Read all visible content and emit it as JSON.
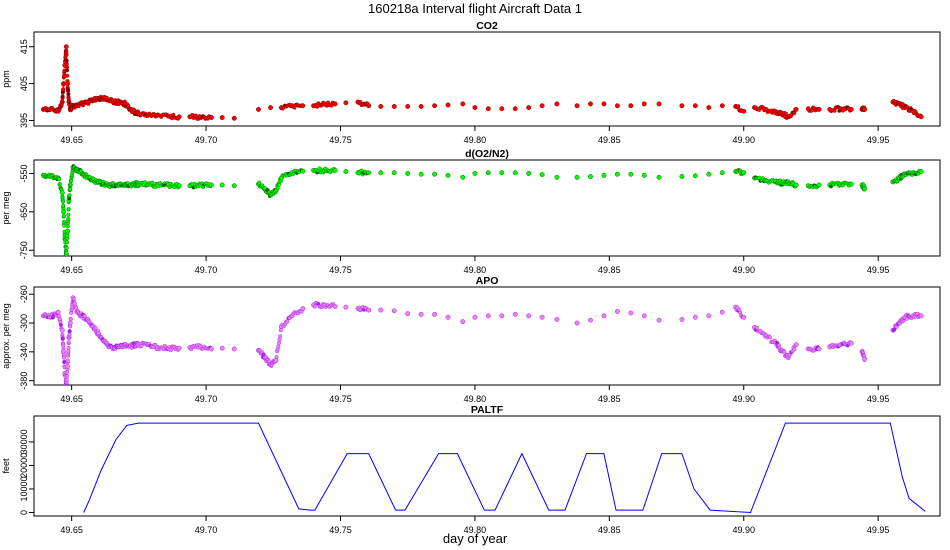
{
  "figure": {
    "title": "160218a   Interval flight Aircraft Data 1",
    "xlabel": "day of year"
  },
  "chart_data": [
    {
      "type": "scatter",
      "title": "CO2",
      "ylabel": "ppm",
      "xlim": [
        49.636,
        49.973
      ],
      "ylim": [
        393.5,
        419
      ],
      "x_ticks": [
        "49.65",
        "49.70",
        "49.75",
        "49.80",
        "49.85",
        "49.90",
        "49.95"
      ],
      "y_ticks": [
        "395",
        "405",
        "415"
      ],
      "colors": {
        "main": "#ff0000",
        "edge": "#7a0000"
      },
      "series": [
        {
          "x": [
            49.6395,
            49.642,
            49.645,
            49.6465,
            49.647,
            49.6475,
            49.648,
            49.6485,
            49.649,
            49.6495,
            49.6505,
            49.652,
            49.654,
            49.656,
            49.658,
            49.66,
            49.662,
            49.664,
            49.666,
            49.668,
            49.67,
            49.672,
            49.674,
            49.6748,
            49.6785,
            49.682,
            49.686,
            49.69,
            49.694,
            49.698,
            49.702,
            49.706,
            49.7105,
            49.7195,
            49.724,
            49.728,
            49.732,
            49.736,
            49.74,
            49.744,
            49.748,
            49.752,
            49.7565,
            49.7605,
            49.765,
            49.77,
            49.775,
            49.78,
            49.785,
            49.79,
            49.7955,
            49.8,
            49.805,
            49.81,
            49.815,
            49.82,
            49.825,
            49.8305,
            49.838,
            49.843,
            49.848,
            49.853,
            49.858,
            49.863,
            49.8685,
            49.877,
            49.882,
            49.887,
            49.892,
            49.897,
            49.9,
            49.904,
            49.908,
            49.912,
            49.914,
            49.9165,
            49.9195,
            49.924,
            49.928,
            49.932,
            49.936,
            49.94,
            49.944,
            49.945,
            49.9555,
            49.958,
            49.96,
            49.963,
            49.966
          ],
          "y": [
            398,
            398,
            397.5,
            400,
            405,
            410,
            415,
            405,
            400,
            398,
            399,
            399,
            399.5,
            400,
            400.5,
            401,
            401,
            400.5,
            400,
            400,
            399.5,
            398,
            397,
            397,
            396.5,
            396.5,
            396.2,
            396,
            396,
            395.8,
            395.8,
            395.8,
            395.6,
            398,
            398.5,
            398.5,
            399,
            399,
            399,
            399.5,
            399.5,
            399.8,
            400,
            399,
            398.8,
            398.8,
            398.8,
            398.8,
            399,
            399.2,
            399.5,
            398.5,
            398.2,
            398.2,
            398.2,
            398.5,
            399,
            399.5,
            399,
            399.5,
            399.5,
            399,
            399,
            399.5,
            399.5,
            399,
            399,
            398.5,
            399,
            398.8,
            397.5,
            398.5,
            398,
            397,
            397,
            396,
            398,
            398.2,
            398,
            398,
            398.2,
            398,
            398,
            398,
            400,
            399.5,
            398.5,
            397.5,
            396
          ]
        }
      ]
    },
    {
      "type": "scatter",
      "title": "d(O2/N2)",
      "ylabel": "per meg",
      "xlim": [
        49.636,
        49.973
      ],
      "ylim": [
        -765,
        -515
      ],
      "x_ticks": [
        "49.65",
        "49.70",
        "49.75",
        "49.80",
        "49.85",
        "49.90",
        "49.95"
      ],
      "y_ticks": [
        "-750",
        "-650",
        "-550"
      ],
      "colors": {
        "main": "#00ff00",
        "edge": "#006400"
      },
      "series": [
        {
          "x": [
            49.6395,
            49.642,
            49.645,
            49.6465,
            49.647,
            49.6475,
            49.648,
            49.6485,
            49.649,
            49.6495,
            49.6505,
            49.652,
            49.654,
            49.656,
            49.658,
            49.66,
            49.662,
            49.664,
            49.666,
            49.668,
            49.67,
            49.672,
            49.674,
            49.6748,
            49.6785,
            49.682,
            49.686,
            49.69,
            49.694,
            49.698,
            49.702,
            49.706,
            49.7105,
            49.7195,
            49.722,
            49.724,
            49.726,
            49.728,
            49.732,
            49.736,
            49.74,
            49.744,
            49.748,
            49.752,
            49.7565,
            49.7605,
            49.765,
            49.77,
            49.775,
            49.78,
            49.785,
            49.79,
            49.7955,
            49.8,
            49.805,
            49.81,
            49.815,
            49.82,
            49.825,
            49.8305,
            49.838,
            49.843,
            49.848,
            49.853,
            49.858,
            49.863,
            49.8685,
            49.877,
            49.882,
            49.887,
            49.892,
            49.897,
            49.9,
            49.904,
            49.908,
            49.912,
            49.914,
            49.9165,
            49.9195,
            49.924,
            49.928,
            49.932,
            49.936,
            49.94,
            49.944,
            49.945,
            49.9555,
            49.958,
            49.96,
            49.963,
            49.966
          ],
          "y": [
            -555,
            -558,
            -562,
            -600,
            -650,
            -720,
            -760,
            -700,
            -620,
            -580,
            -535,
            -540,
            -550,
            -560,
            -568,
            -572,
            -578,
            -580,
            -580,
            -578,
            -578,
            -580,
            -578,
            -578,
            -578,
            -580,
            -580,
            -582,
            -582,
            -580,
            -580,
            -580,
            -582,
            -578,
            -590,
            -605,
            -595,
            -562,
            -548,
            -544,
            -542,
            -542,
            -542,
            -545,
            -548,
            -548,
            -548,
            -548,
            -550,
            -552,
            -552,
            -555,
            -560,
            -550,
            -548,
            -548,
            -548,
            -550,
            -553,
            -560,
            -560,
            -558,
            -555,
            -552,
            -552,
            -555,
            -560,
            -558,
            -556,
            -552,
            -548,
            -545,
            -548,
            -562,
            -568,
            -570,
            -575,
            -572,
            -580,
            -582,
            -580,
            -580,
            -578,
            -578,
            -580,
            -590,
            -572,
            -562,
            -552,
            -548,
            -545
          ]
        }
      ]
    },
    {
      "type": "scatter",
      "title": "APO",
      "ylabel": "approx. per meg",
      "xlim": [
        49.636,
        49.973
      ],
      "ylim": [
        -386,
        -250
      ],
      "x_ticks": [
        "49.65",
        "49.70",
        "49.75",
        "49.80",
        "49.85",
        "49.90",
        "49.95"
      ],
      "y_ticks": [
        "-380",
        "-340",
        "-300",
        "-260"
      ],
      "colors": {
        "main": "#ee82ee",
        "edge": "#a020f0"
      },
      "series": [
        {
          "x": [
            49.6395,
            49.642,
            49.645,
            49.6465,
            49.647,
            49.6475,
            49.648,
            49.6485,
            49.649,
            49.6495,
            49.6505,
            49.652,
            49.654,
            49.656,
            49.658,
            49.66,
            49.662,
            49.664,
            49.666,
            49.668,
            49.67,
            49.672,
            49.674,
            49.6748,
            49.6785,
            49.682,
            49.686,
            49.69,
            49.694,
            49.698,
            49.702,
            49.706,
            49.7105,
            49.7195,
            49.722,
            49.724,
            49.726,
            49.728,
            49.732,
            49.736,
            49.74,
            49.744,
            49.748,
            49.752,
            49.7565,
            49.7605,
            49.765,
            49.77,
            49.775,
            49.78,
            49.785,
            49.79,
            49.7955,
            49.8,
            49.805,
            49.81,
            49.815,
            49.82,
            49.825,
            49.8305,
            49.838,
            49.843,
            49.848,
            49.853,
            49.858,
            49.863,
            49.8685,
            49.877,
            49.882,
            49.887,
            49.892,
            49.897,
            49.9,
            49.904,
            49.908,
            49.912,
            49.914,
            49.9165,
            49.9195,
            49.924,
            49.928,
            49.932,
            49.936,
            49.94,
            49.944,
            49.945,
            49.9555,
            49.958,
            49.96,
            49.963,
            49.966
          ],
          "y": [
            -290,
            -292,
            -285,
            -310,
            -340,
            -370,
            -385,
            -360,
            -320,
            -300,
            -265,
            -285,
            -290,
            -295,
            -305,
            -315,
            -325,
            -332,
            -335,
            -332,
            -330,
            -332,
            -330,
            -330,
            -330,
            -334,
            -335,
            -335,
            -334,
            -333,
            -336,
            -335,
            -336,
            -338,
            -348,
            -358,
            -352,
            -305,
            -290,
            -280,
            -275,
            -275,
            -277,
            -278,
            -280,
            -282,
            -282,
            -283,
            -287,
            -288,
            -288,
            -292,
            -298,
            -292,
            -290,
            -290,
            -288,
            -290,
            -292,
            -295,
            -300,
            -296,
            -290,
            -284,
            -286,
            -290,
            -296,
            -295,
            -292,
            -290,
            -285,
            -278,
            -292,
            -306,
            -318,
            -328,
            -338,
            -348,
            -330,
            -336,
            -336,
            -333,
            -330,
            -328,
            -340,
            -350,
            -310,
            -300,
            -292,
            -290,
            -290
          ]
        }
      ]
    },
    {
      "type": "line",
      "title": "PALTF",
      "ylabel": "feet",
      "xlim": [
        49.636,
        49.973
      ],
      "ylim": [
        -1500,
        41000
      ],
      "x_ticks": [
        "49.65",
        "49.70",
        "49.75",
        "49.80",
        "49.85",
        "49.90",
        "49.95"
      ],
      "y_ticks": [
        "0",
        "10000",
        "20000",
        "30000"
      ],
      "colors": {
        "line": "#0000ff"
      },
      "series": [
        {
          "x": [
            49.6545,
            49.6565,
            49.661,
            49.6665,
            49.6705,
            49.6748,
            49.7195,
            49.7345,
            49.7385,
            49.7405,
            49.7525,
            49.7605,
            49.7705,
            49.774,
            49.7865,
            49.7935,
            49.8035,
            49.8075,
            49.8175,
            49.8275,
            49.8335,
            49.8415,
            49.848,
            49.8525,
            49.8625,
            49.8695,
            49.877,
            49.8815,
            49.8875,
            49.9025,
            49.9155,
            49.9545,
            49.959,
            49.9615,
            49.9675
          ],
          "y": [
            0,
            5000,
            18000,
            31000,
            37000,
            38000,
            38000,
            1500,
            1000,
            1000,
            25000,
            25000,
            1000,
            1000,
            25000,
            25000,
            1000,
            1000,
            25000,
            1000,
            1000,
            25000,
            25000,
            1000,
            1000,
            25000,
            25000,
            10000,
            1000,
            0,
            38000,
            38000,
            15000,
            6000,
            500
          ]
        }
      ]
    }
  ]
}
